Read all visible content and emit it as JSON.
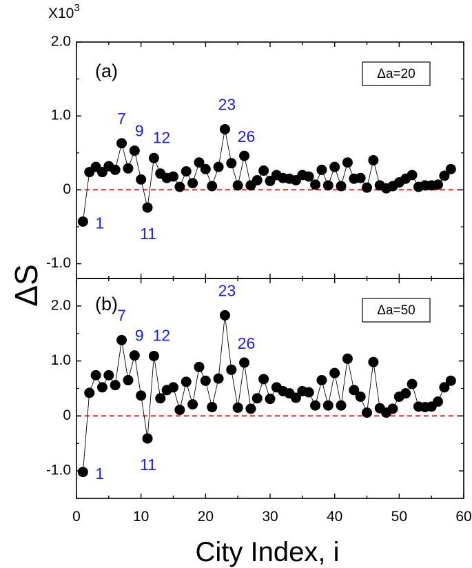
{
  "chart_data": {
    "type": "scatter",
    "xlabel": "City Index, i",
    "ylabel": "ΔS",
    "y_multiplier": {
      "prefix": "X10",
      "exponent": "3"
    },
    "xlim": [
      0,
      60
    ],
    "x_ticks": [
      "0",
      "10",
      "20",
      "30",
      "40",
      "50",
      "60"
    ],
    "colors": {
      "points": "#000000",
      "line": "#000000",
      "zero_line": "#e00000",
      "annotations": "#1a1aff"
    },
    "grid": false,
    "panels": [
      {
        "label": "(a)",
        "legend": "Δa=20",
        "legend_position": "top-right",
        "ylim": [
          -1.2,
          2.0
        ],
        "y_ticks": [
          "-1.0",
          "0",
          "1.0",
          "2.0"
        ],
        "x": [
          1,
          2,
          3,
          4,
          5,
          6,
          7,
          8,
          9,
          10,
          11,
          12,
          13,
          14,
          15,
          16,
          17,
          18,
          19,
          20,
          21,
          22,
          23,
          24,
          25,
          26,
          27,
          28,
          29,
          30,
          31,
          32,
          33,
          34,
          35,
          36,
          37,
          38,
          39,
          40,
          41,
          42,
          43,
          44,
          45,
          46,
          47,
          48,
          49,
          50,
          51,
          52,
          53,
          54,
          55,
          56,
          57,
          58
        ],
        "y": [
          -0.43,
          0.24,
          0.31,
          0.24,
          0.32,
          0.27,
          0.63,
          0.29,
          0.53,
          0.14,
          -0.24,
          0.43,
          0.22,
          0.16,
          0.18,
          0.04,
          0.25,
          0.09,
          0.37,
          0.28,
          0.05,
          0.31,
          0.82,
          0.36,
          0.06,
          0.46,
          0.06,
          0.13,
          0.26,
          0.12,
          0.2,
          0.16,
          0.15,
          0.13,
          0.2,
          0.18,
          0.07,
          0.27,
          0.06,
          0.31,
          0.05,
          0.37,
          0.15,
          0.16,
          0.03,
          0.4,
          0.06,
          0.02,
          0.05,
          0.1,
          0.15,
          0.2,
          0.04,
          0.06,
          0.06,
          0.07,
          0.19,
          0.28
        ],
        "annotations": [
          {
            "text": "1",
            "x": 1,
            "y": -0.43
          },
          {
            "text": "7",
            "x": 7,
            "y": 0.63
          },
          {
            "text": "9",
            "x": 9,
            "y": 0.53
          },
          {
            "text": "11",
            "x": 11,
            "y": -0.24
          },
          {
            "text": "12",
            "x": 12,
            "y": 0.43
          },
          {
            "text": "23",
            "x": 23,
            "y": 0.82
          },
          {
            "text": "26",
            "x": 26,
            "y": 0.46
          }
        ]
      },
      {
        "label": "(b)",
        "legend": "Δa=50",
        "legend_position": "top-right",
        "ylim": [
          -1.5,
          2.5
        ],
        "y_ticks": [
          "-1.0",
          "0",
          "1.0",
          "2.0"
        ],
        "x": [
          1,
          2,
          3,
          4,
          5,
          6,
          7,
          8,
          9,
          10,
          11,
          12,
          13,
          14,
          15,
          16,
          17,
          18,
          19,
          20,
          21,
          22,
          23,
          24,
          25,
          26,
          27,
          28,
          29,
          30,
          31,
          32,
          33,
          34,
          35,
          36,
          37,
          38,
          39,
          40,
          41,
          42,
          43,
          44,
          45,
          46,
          47,
          48,
          49,
          50,
          51,
          52,
          53,
          54,
          55,
          56,
          57,
          58
        ],
        "y": [
          -1.02,
          0.42,
          0.74,
          0.52,
          0.74,
          0.56,
          1.38,
          0.65,
          1.1,
          0.37,
          -0.41,
          1.09,
          0.32,
          0.47,
          0.52,
          0.11,
          0.62,
          0.21,
          0.89,
          0.64,
          0.16,
          0.68,
          1.83,
          0.84,
          0.15,
          0.97,
          0.13,
          0.32,
          0.67,
          0.31,
          0.52,
          0.45,
          0.41,
          0.33,
          0.45,
          0.43,
          0.19,
          0.65,
          0.19,
          0.78,
          0.19,
          1.04,
          0.47,
          0.35,
          0.06,
          0.98,
          0.14,
          0.06,
          0.13,
          0.35,
          0.41,
          0.58,
          0.17,
          0.16,
          0.17,
          0.26,
          0.52,
          0.64
        ],
        "annotations": [
          {
            "text": "1",
            "x": 1,
            "y": -1.02
          },
          {
            "text": "7",
            "x": 7,
            "y": 1.38
          },
          {
            "text": "9",
            "x": 9,
            "y": 1.1
          },
          {
            "text": "11",
            "x": 11,
            "y": -0.41
          },
          {
            "text": "12",
            "x": 12,
            "y": 1.09
          },
          {
            "text": "23",
            "x": 23,
            "y": 1.83
          },
          {
            "text": "26",
            "x": 26,
            "y": 0.97
          }
        ]
      }
    ]
  }
}
